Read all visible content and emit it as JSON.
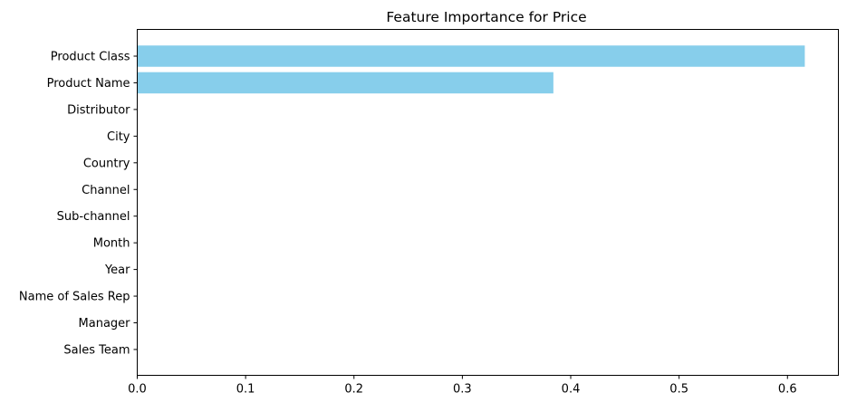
{
  "chart_data": {
    "type": "bar",
    "orientation": "horizontal",
    "title": "Feature Importance for Price",
    "xlabel": "",
    "ylabel": "",
    "categories": [
      "Product Class",
      "Product Name",
      "Distributor",
      "City",
      "Country",
      "Channel",
      "Sub-channel",
      "Month",
      "Year",
      "Name of Sales Rep",
      "Manager",
      "Sales Team"
    ],
    "values": [
      0.616,
      0.384,
      0,
      0,
      0,
      0,
      0,
      0,
      0,
      0,
      0,
      0
    ],
    "xlim": [
      0,
      0.647
    ],
    "xticks": [
      "0.0",
      "0.1",
      "0.2",
      "0.3",
      "0.4",
      "0.5",
      "0.6"
    ],
    "grid": false,
    "bar_color": "#87ceeb"
  }
}
